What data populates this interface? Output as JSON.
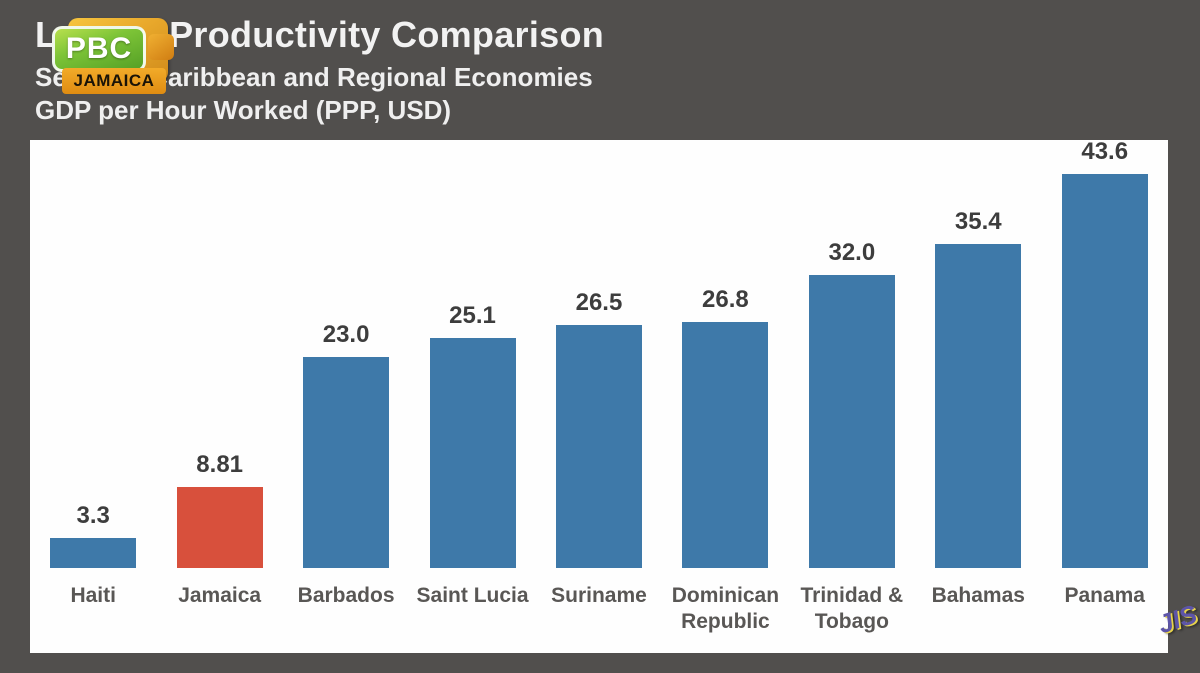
{
  "header": {
    "title": "Labour Productivity Comparison",
    "subtitle": "Selected Caribbean and Regional Economies",
    "unit_line": "GDP per Hour Worked (PPP, USD)"
  },
  "logo": {
    "pbc": "PBC",
    "jamaica": "JAMAICA"
  },
  "watermark": {
    "jis": "JIS"
  },
  "chart_data": {
    "type": "bar",
    "title": "Labour Productivity Comparison",
    "subtitle": "Selected Caribbean and Regional Economies",
    "unit_label": "GDP per Hour Worked (PPP, USD)",
    "categories": [
      "Haiti",
      "Jamaica",
      "Barbados",
      "Saint Lucia",
      "Suriname",
      "Dominican Republic",
      "Trinidad & Tobago",
      "Bahamas",
      "Panama"
    ],
    "values": [
      3.3,
      8.81,
      23.0,
      25.1,
      26.5,
      26.8,
      32.0,
      35.4,
      43.6
    ],
    "value_labels": [
      "3.3",
      "8.81",
      "23.0",
      "25.1",
      "26.5",
      "26.8",
      "32.0",
      "35.4",
      "43.6"
    ],
    "highlight_index": 1,
    "bar_color": "#3e79a9",
    "highlight_color": "#d8503c",
    "value_label_color": "#3d3d3d",
    "category_label_color": "#595755",
    "background": "#514f4d",
    "plot_background": "#fefefe",
    "ylim": [
      0,
      46.7
    ],
    "grid": false,
    "legend": false,
    "value_labels_shown": true
  }
}
